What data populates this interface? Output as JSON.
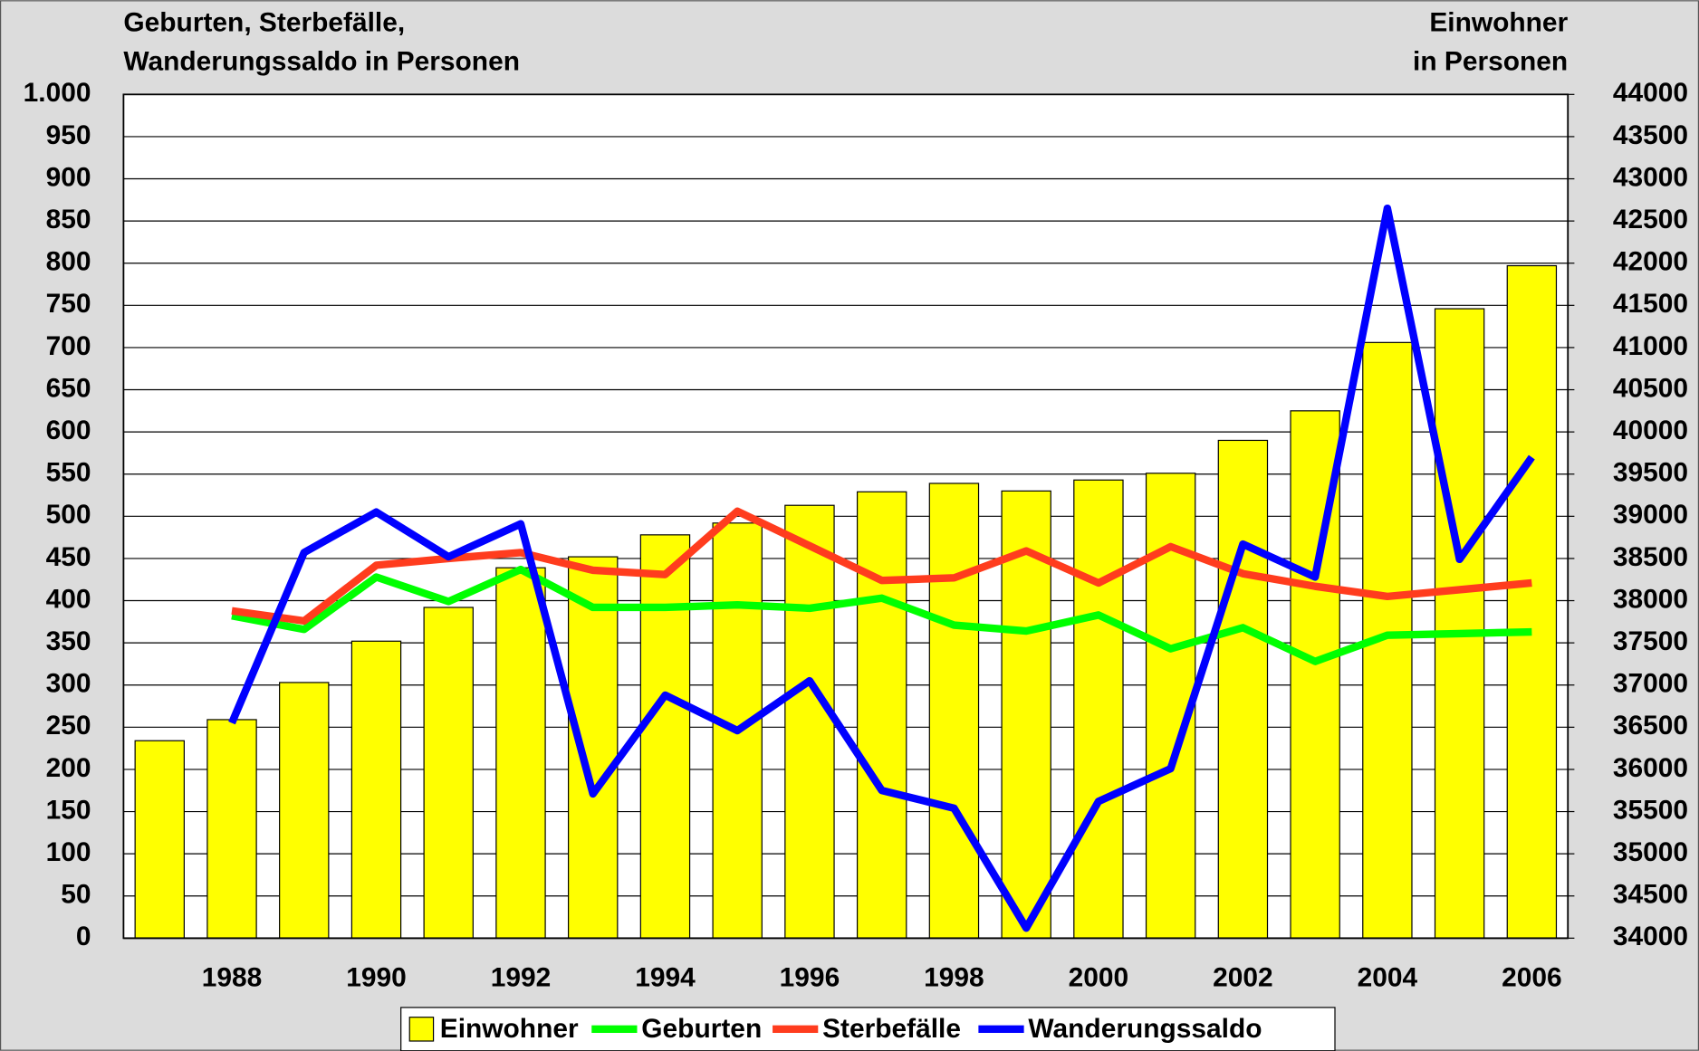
{
  "chart_data": {
    "type": "bar",
    "y_label": [
      "Geburten, Sterbefälle,",
      "Wanderungssaldo in Personen"
    ],
    "y2_label": [
      "Einwohner",
      "in Personen"
    ],
    "categories": [
      null,
      "1988",
      null,
      "1990",
      null,
      "1992",
      null,
      "1994",
      null,
      "1996",
      null,
      "1998",
      null,
      "2000",
      null,
      "2002",
      null,
      "2004",
      null,
      "2006"
    ],
    "series": [
      {
        "name": "Einwohner",
        "type": "bar",
        "axis": "y2",
        "color": "#ffff00",
        "values": [
          36340,
          36590,
          37030,
          37520,
          37920,
          38390,
          38520,
          38780,
          38920,
          39130,
          39290,
          39390,
          39300,
          39430,
          39510,
          39900,
          40250,
          41060,
          41460,
          41970
        ]
      },
      {
        "name": "Geburten",
        "type": "line",
        "color": "#00ff00",
        "values": [
          null,
          382,
          366,
          428,
          399,
          437,
          392,
          392,
          395,
          391,
          403,
          371,
          364,
          383,
          343,
          368,
          328,
          359,
          361,
          363
        ]
      },
      {
        "name": "Sterbefälle",
        "type": "line",
        "color": "#ff3c1e",
        "values": [
          null,
          388,
          376,
          442,
          450,
          457,
          436,
          431,
          506,
          465,
          424,
          427,
          459,
          421,
          464,
          432,
          417,
          405,
          413,
          421
        ]
      },
      {
        "name": "Wanderungssaldo",
        "type": "line",
        "color": "#0000ff",
        "values": [
          null,
          255,
          457,
          505,
          452,
          491,
          171,
          288,
          246,
          305,
          175,
          154,
          12,
          162,
          201,
          467,
          428,
          865,
          449,
          570
        ]
      }
    ],
    "ylim": [
      0,
      1000
    ],
    "yticks": [
      0,
      50,
      100,
      150,
      200,
      250,
      300,
      350,
      400,
      450,
      500,
      550,
      600,
      650,
      700,
      750,
      800,
      850,
      900,
      950,
      {
        "value": 1000,
        "label": "1.000"
      }
    ],
    "y2lim": [
      34000,
      44000
    ],
    "y2ticks": [
      34000,
      34500,
      35000,
      35500,
      36000,
      36500,
      37000,
      37500,
      38000,
      38500,
      39000,
      39500,
      40000,
      40500,
      41000,
      41500,
      42000,
      42500,
      43000,
      43500,
      44000
    ],
    "grid": true,
    "legend": "bottom"
  }
}
